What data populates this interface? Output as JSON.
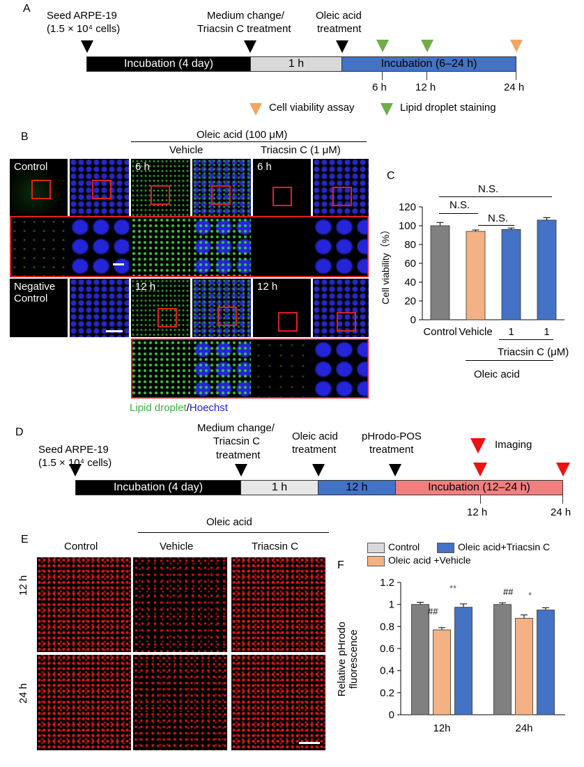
{
  "panel_a": {
    "letter": "A",
    "seed_line1": "Seed ARPE-19",
    "seed_line2": "(1.5 × 10⁴ cells)",
    "medium_line1": "Medium change/",
    "medium_line2": "Triacsin C treatment",
    "oleic_line1": "Oleic acid",
    "oleic_line2": "treatment",
    "bar_incubation": "Incubation (4 day)",
    "bar_1h": "1 h",
    "bar_incubation2": "Incubation (6–24 h)",
    "tick_6h": "6 h",
    "tick_12h": "12 h",
    "tick_24h": "24 h",
    "legend_viability": "Cell viability assay",
    "legend_lipid": "Lipid droplet staining",
    "colors": {
      "black": "#000000",
      "gray": "#d9d9d9",
      "blue": "#4472c4",
      "orange": "#f4a460",
      "green": "#70ad47"
    }
  },
  "panel_b": {
    "letter": "B",
    "header_oleic": "Oleic acid (100 μM)",
    "header_vehicle": "Vehicle",
    "header_triacsin": "Triacsin C (1 μM)",
    "label_control": "Control",
    "label_negative_line1": "Negative",
    "label_negative_line2": "Control",
    "label_6h_a": "6 h",
    "label_6h_b": "6 h",
    "label_12h_a": "12 h",
    "label_12h_b": "12 h",
    "caption_lipid": "Lipid droplet",
    "caption_slash": "/",
    "caption_hoechst": "Hoechst"
  },
  "panel_c": {
    "letter": "C",
    "ylabel": "Cell viability（%）",
    "ns_top": "N.S.",
    "ns_left": "N.S.",
    "ns_right": "N.S.",
    "xlabels": [
      "Control",
      "Vehicle",
      "1",
      "1"
    ],
    "triacsin_label": "Triacsin C (μM)",
    "oleic_label": "Oleic acid",
    "yticks": [
      "0",
      "10",
      "20",
      "30",
      "40",
      "50",
      "60",
      "70",
      "80",
      "90",
      "100",
      "110",
      "120"
    ]
  },
  "panel_d": {
    "letter": "D",
    "seed_line1": "Seed ARPE-19",
    "seed_line2": "(1.5 × 10⁴ cells)",
    "medium_line1": "Medium change/",
    "medium_line2": "Triacsin C",
    "medium_line3": "treatment",
    "oleic_line1": "Oleic acid",
    "oleic_line2": "treatment",
    "phrodo_line1": "pHrodo-POS",
    "phrodo_line2": "treatment",
    "imaging": "Imaging",
    "bar_incubation": "Incubation (4 day)",
    "bar_1h": "1 h",
    "bar_12h": "12 h",
    "bar_incubation2": "Incubation (12–24 h)",
    "tick_12h": "12 h",
    "tick_24h": "24 h",
    "colors": {
      "red": "#ee3333",
      "pink": "#f08080",
      "blue": "#4472c4"
    }
  },
  "panel_e": {
    "letter": "E",
    "header_oleic": "Oleic acid",
    "col_control": "Control",
    "col_vehicle": "Vehicle",
    "col_triacsin": "Triacsin C",
    "row_12h": "12 h",
    "row_24h": "24 h"
  },
  "panel_f": {
    "letter": "F",
    "legend_control": "Control",
    "legend_triacsin": "Oleic acid+Triacsin C",
    "legend_vehicle": "Oleic acid +Vehicle",
    "ylabel_line1": "Relative pHrodo",
    "ylabel_line2": "fluorescence",
    "yticks": [
      "0",
      "0.2",
      "0.4",
      "0.6",
      "0.8",
      "1",
      "1.2"
    ],
    "sig_12h_vehicle": "##",
    "sig_12h_triacsin": "**",
    "sig_24h_vehicle": "##",
    "sig_24h_triacsin": "*"
  },
  "chart_data": [
    {
      "type": "bar",
      "panel": "C",
      "categories": [
        "Control",
        "Vehicle",
        "1",
        "1"
      ],
      "values": [
        100,
        94,
        96,
        106
      ],
      "errors": [
        3.5,
        1.5,
        1.5,
        2.5
      ],
      "colors": [
        "#808080",
        "#f4b183",
        "#4472c4",
        "#4472c4"
      ],
      "title": "",
      "xlabel": "Triacsin C (μM)",
      "ylabel": "Cell viability（%）",
      "ylim": [
        0,
        120
      ]
    },
    {
      "type": "bar",
      "panel": "F",
      "categories": [
        "12h",
        "24h"
      ],
      "series": [
        {
          "name": "Control",
          "values": [
            1.0,
            1.0
          ],
          "errors": [
            0.02,
            0.015
          ],
          "color": "#808080"
        },
        {
          "name": "Oleic acid +Vehicle",
          "values": [
            0.77,
            0.875
          ],
          "errors": [
            0.02,
            0.03
          ],
          "color": "#f4b183"
        },
        {
          "name": "Oleic acid+Triacsin C",
          "values": [
            0.975,
            0.95
          ],
          "errors": [
            0.03,
            0.02
          ],
          "color": "#4472c4"
        }
      ],
      "title": "",
      "xlabel": "",
      "ylabel": "Relative pHrodo fluorescence",
      "ylim": [
        0,
        1.2
      ]
    }
  ]
}
